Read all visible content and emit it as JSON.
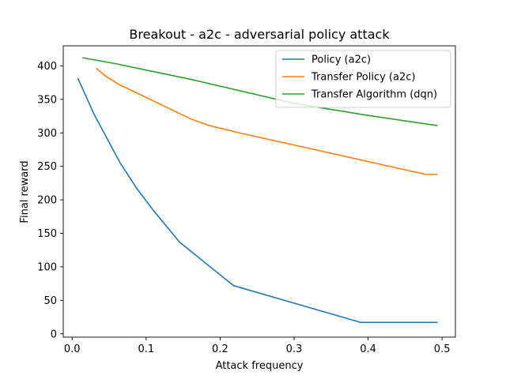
{
  "chart_data": {
    "type": "line",
    "title": "Breakout - a2c - adversarial policy attack",
    "xlabel": "Attack frequency",
    "ylabel": "Final reward",
    "xlim": [
      -0.012,
      0.518
    ],
    "ylim": [
      -5,
      430
    ],
    "xticks": [
      0.0,
      0.1,
      0.2,
      0.3,
      0.4,
      0.5
    ],
    "xtick_labels": [
      "0.0",
      "0.1",
      "0.2",
      "0.3",
      "0.4",
      "0.5"
    ],
    "yticks": [
      0,
      50,
      100,
      150,
      200,
      250,
      300,
      350,
      400
    ],
    "ytick_labels": [
      "0",
      "50",
      "100",
      "150",
      "200",
      "250",
      "300",
      "350",
      "400"
    ],
    "grid": false,
    "legend_position": "upper right",
    "series": [
      {
        "name": "Policy (a2c)",
        "color": "#1f77b4",
        "x": [
          0.008,
          0.03,
          0.065,
          0.088,
          0.11,
          0.145,
          0.218,
          0.39,
          0.493
        ],
        "y": [
          381,
          327,
          255,
          216,
          184,
          137,
          72,
          17,
          17
        ]
      },
      {
        "name": "Transfer Policy (a2c)",
        "color": "#ff7f0e",
        "x": [
          0.033,
          0.045,
          0.062,
          0.16,
          0.185,
          0.23,
          0.478,
          0.493
        ],
        "y": [
          396,
          385,
          373,
          321,
          311,
          299,
          238,
          238
        ]
      },
      {
        "name": "Transfer Algorithm (dqn)",
        "color": "#2ca02c",
        "x": [
          0.015,
          0.06,
          0.09,
          0.16,
          0.3,
          0.4,
          0.493
        ],
        "y": [
          412,
          403,
          396,
          380,
          344,
          326,
          311
        ]
      }
    ]
  }
}
